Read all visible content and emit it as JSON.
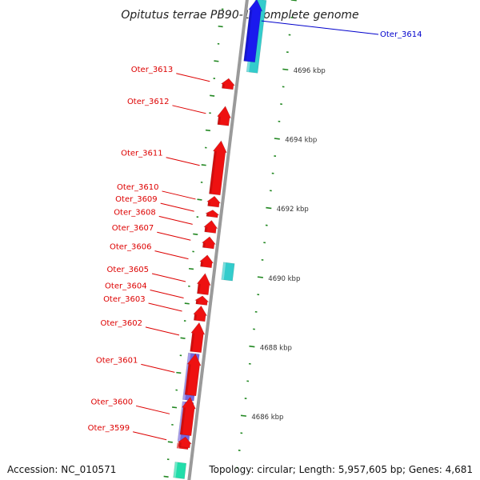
{
  "title": "Opitutus terrae PB90-1, complete genome",
  "footer": {
    "accession": "Accession: NC_010571",
    "summary": "Topology: circular; Length: 5,957,605 bp; Genes: 4,681"
  },
  "colors": {
    "backbone": "#9a9a9a",
    "gene_red": "#ee1111",
    "gene_cyan": "#33cccc",
    "gene_blue": "#1a1aee",
    "gene_purple": "#7766dd",
    "gene_green": "#22ddaa",
    "label_red": "#dd0000",
    "label_blue": "#0000cc",
    "tick_green": "#228822"
  },
  "ticks": [
    {
      "label": "4686 kbp",
      "pos": 4686
    },
    {
      "label": "4688 kbp",
      "pos": 4688
    },
    {
      "label": "4690 kbp",
      "pos": 4690
    },
    {
      "label": "4692 kbp",
      "pos": 4692
    },
    {
      "label": "4694 kbp",
      "pos": 4694
    },
    {
      "label": "4696 kbp",
      "pos": 4696
    }
  ],
  "genes": [
    {
      "label": "Oter_3599",
      "start": 4684.9,
      "end": 4685.2,
      "strand": "+",
      "color": "gene_red"
    },
    {
      "label": "Oter_3600",
      "start": 4685.25,
      "end": 4686.35,
      "strand": "+",
      "color": "gene_red"
    },
    {
      "label": "Oter_3601",
      "start": 4686.4,
      "end": 4687.6,
      "strand": "+",
      "color": "gene_red"
    },
    {
      "label": "Oter_3602",
      "start": 4687.65,
      "end": 4688.5,
      "strand": "+",
      "color": "gene_red"
    },
    {
      "label": "Oter_3603",
      "start": 4688.55,
      "end": 4688.98,
      "strand": "+",
      "color": "gene_red"
    },
    {
      "label": "Oter_3604",
      "start": 4689.02,
      "end": 4689.27,
      "strand": "+",
      "color": "gene_red"
    },
    {
      "label": "Oter_3605",
      "start": 4689.32,
      "end": 4689.92,
      "strand": "+",
      "color": "gene_red"
    },
    {
      "label": "Oter_3606",
      "start": 4690.1,
      "end": 4690.45,
      "strand": "+",
      "color": "gene_red"
    },
    {
      "label": "Oter_3607",
      "start": 4690.65,
      "end": 4690.98,
      "strand": "+",
      "color": "gene_red"
    },
    {
      "label": "Oter_3608",
      "start": 4691.1,
      "end": 4691.45,
      "strand": "+",
      "color": "gene_red"
    },
    {
      "label": "Oter_3609",
      "start": 4691.55,
      "end": 4691.75,
      "strand": "+",
      "color": "gene_red"
    },
    {
      "label": "Oter_3610",
      "start": 4691.85,
      "end": 4692.15,
      "strand": "+",
      "color": "gene_red"
    },
    {
      "label": "Oter_3611",
      "start": 4692.2,
      "end": 4693.75,
      "strand": "+",
      "color": "gene_red"
    },
    {
      "label": "Oter_3612",
      "start": 4694.2,
      "end": 4694.75,
      "strand": "+",
      "color": "gene_red"
    },
    {
      "label": "Oter_3613",
      "start": 4695.25,
      "end": 4695.55,
      "strand": "+",
      "color": "gene_red"
    },
    {
      "label": "Oter_3614",
      "start": 4696.1,
      "end": 4697.9,
      "strand": "+",
      "color": "gene_blue"
    }
  ],
  "features": [
    {
      "start": 4689.8,
      "end": 4690.3,
      "ring": 3,
      "color": "gene_cyan"
    },
    {
      "start": 4695.8,
      "end": 4697.9,
      "ring": 3,
      "color": "gene_cyan"
    },
    {
      "start": 4685.05,
      "end": 4686.2,
      "ring": 2,
      "color": "gene_purple"
    },
    {
      "start": 4686.25,
      "end": 4687.6,
      "ring": 2,
      "color": "gene_purple"
    },
    {
      "start": 4684.85,
      "end": 4685.0,
      "ring": 2,
      "color": "gene_red"
    },
    {
      "start": 4684.0,
      "end": 4684.45,
      "ring": 2,
      "color": "gene_green"
    }
  ]
}
